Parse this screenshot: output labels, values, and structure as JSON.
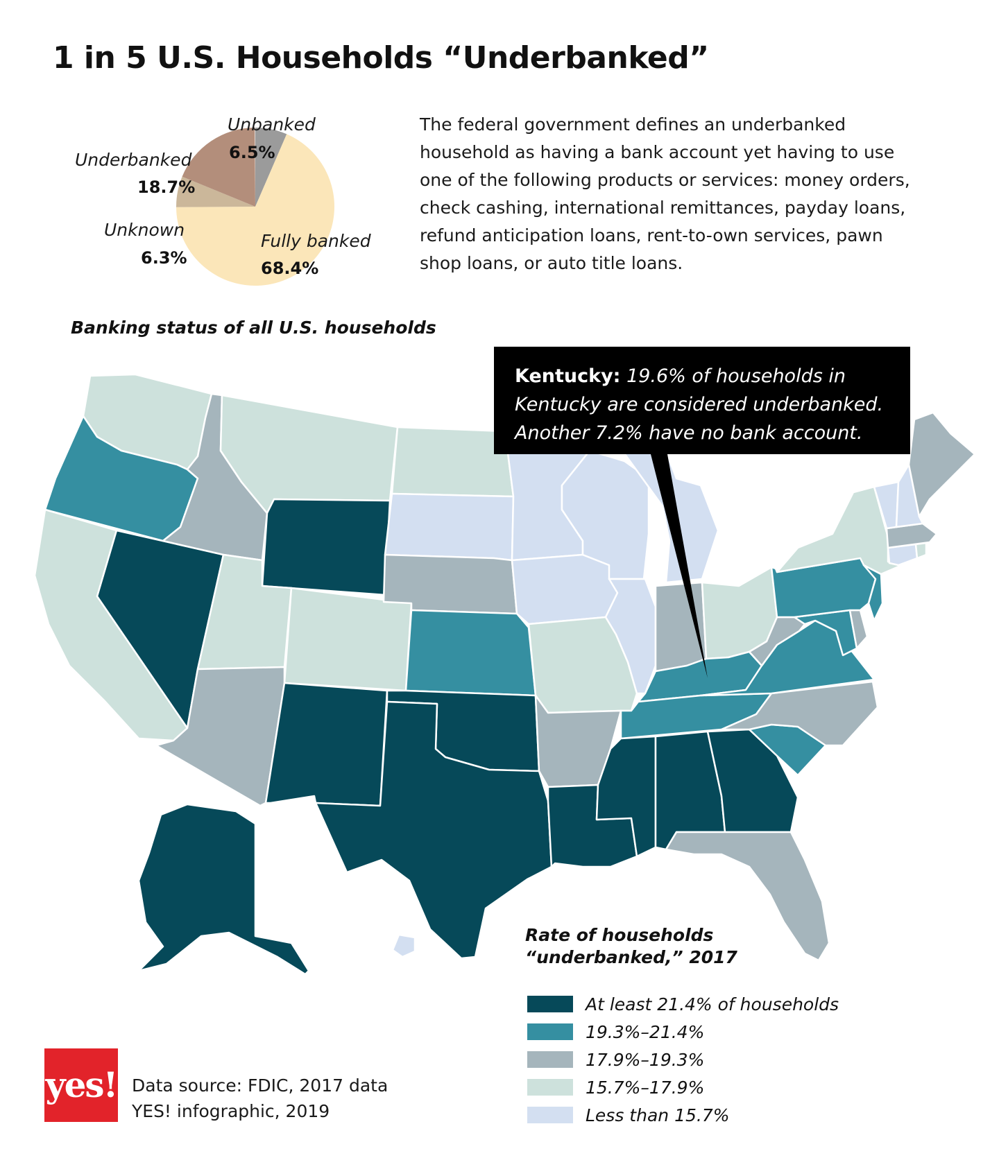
{
  "title": "1 in 5 U.S. Households “Underbanked”",
  "description": "The federal government defines an underbanked household as having a bank account yet having to use one of the following products or services: money orders, check cashing, international remittances, payday loans, refund anticipation loans, rent-to-own services, pawn shop loans, or auto title loans.",
  "pie": {
    "caption": "Banking status of all U.S. households",
    "slices": [
      {
        "name": "Unbanked",
        "value": "6.5%",
        "pct": 6.5,
        "color": "#9b9b9b"
      },
      {
        "name": "Fully banked",
        "value": "68.4%",
        "pct": 68.4,
        "color": "#fbe6b9"
      },
      {
        "name": "Unknown",
        "value": "6.3%",
        "pct": 6.3,
        "color": "#cbb79a"
      },
      {
        "name": "Underbanked",
        "value": "18.7%",
        "pct": 18.7,
        "color": "#b38e7b"
      }
    ]
  },
  "callout": {
    "state": "Kentucky:",
    "text": "19.6% of households in Kentucky are considered underbanked. Another 7.2% have no bank account."
  },
  "legend": {
    "title": "Rate of households “underbanked,” 2017",
    "items": [
      {
        "label": "At least 21.4% of households",
        "color": "#064959"
      },
      {
        "label": "19.3%–21.4%",
        "color": "#358fa1"
      },
      {
        "label": "17.9%–19.3%",
        "color": "#a5b5bc"
      },
      {
        "label": "15.7%–17.9%",
        "color": "#cde1dc"
      },
      {
        "label": "Less than 15.7%",
        "color": "#d3dff1"
      }
    ]
  },
  "map": {
    "tiers": {
      "t1": "#064959",
      "t2": "#358fa1",
      "t3": "#a5b5bc",
      "t4": "#cde1dc",
      "t5": "#d3dff1"
    },
    "states": [
      {
        "name": "Washington",
        "tier": "t4"
      },
      {
        "name": "Oregon",
        "tier": "t2"
      },
      {
        "name": "California",
        "tier": "t4"
      },
      {
        "name": "Nevada",
        "tier": "t1"
      },
      {
        "name": "Idaho",
        "tier": "t3"
      },
      {
        "name": "Montana",
        "tier": "t4"
      },
      {
        "name": "Wyoming",
        "tier": "t1"
      },
      {
        "name": "Utah",
        "tier": "t4"
      },
      {
        "name": "Colorado",
        "tier": "t4"
      },
      {
        "name": "Arizona",
        "tier": "t3"
      },
      {
        "name": "New Mexico",
        "tier": "t1"
      },
      {
        "name": "North Dakota",
        "tier": "t4"
      },
      {
        "name": "South Dakota",
        "tier": "t5"
      },
      {
        "name": "Nebraska",
        "tier": "t3"
      },
      {
        "name": "Kansas",
        "tier": "t2"
      },
      {
        "name": "Oklahoma",
        "tier": "t1"
      },
      {
        "name": "Texas",
        "tier": "t1"
      },
      {
        "name": "Minnesota",
        "tier": "t5"
      },
      {
        "name": "Iowa",
        "tier": "t5"
      },
      {
        "name": "Missouri",
        "tier": "t4"
      },
      {
        "name": "Arkansas",
        "tier": "t3"
      },
      {
        "name": "Louisiana",
        "tier": "t1"
      },
      {
        "name": "Wisconsin",
        "tier": "t5"
      },
      {
        "name": "Illinois",
        "tier": "t5"
      },
      {
        "name": "Michigan",
        "tier": "t5"
      },
      {
        "name": "Indiana",
        "tier": "t3"
      },
      {
        "name": "Ohio",
        "tier": "t4"
      },
      {
        "name": "Kentucky",
        "tier": "t2"
      },
      {
        "name": "Tennessee",
        "tier": "t2"
      },
      {
        "name": "Mississippi",
        "tier": "t1"
      },
      {
        "name": "Alabama",
        "tier": "t1"
      },
      {
        "name": "Georgia",
        "tier": "t1"
      },
      {
        "name": "Florida",
        "tier": "t3"
      },
      {
        "name": "South Carolina",
        "tier": "t2"
      },
      {
        "name": "North Carolina",
        "tier": "t3"
      },
      {
        "name": "Virginia",
        "tier": "t2"
      },
      {
        "name": "West Virginia",
        "tier": "t3"
      },
      {
        "name": "Maryland",
        "tier": "t2"
      },
      {
        "name": "Delaware",
        "tier": "t3"
      },
      {
        "name": "Pennsylvania",
        "tier": "t2"
      },
      {
        "name": "New Jersey",
        "tier": "t2"
      },
      {
        "name": "New York",
        "tier": "t4"
      },
      {
        "name": "Connecticut",
        "tier": "t5"
      },
      {
        "name": "Rhode Island",
        "tier": "t4"
      },
      {
        "name": "Massachusetts",
        "tier": "t3"
      },
      {
        "name": "Vermont",
        "tier": "t5"
      },
      {
        "name": "New Hampshire",
        "tier": "t5"
      },
      {
        "name": "Maine",
        "tier": "t3"
      },
      {
        "name": "Alaska",
        "tier": "t1"
      },
      {
        "name": "Hawaii",
        "tier": "t5"
      }
    ]
  },
  "logo": "yes!",
  "source": {
    "line1": "Data source: FDIC, 2017 data",
    "line2": "YES! infographic, 2019"
  }
}
